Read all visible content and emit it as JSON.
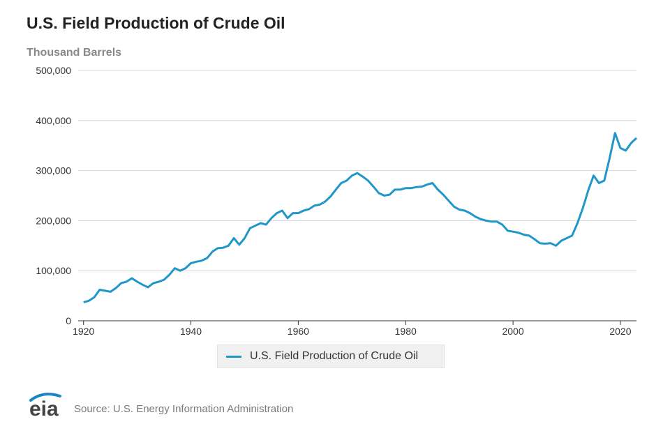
{
  "header": {
    "title": "U.S. Field Production of Crude Oil",
    "unit_label": "Thousand Barrels"
  },
  "footer": {
    "logo_text": "eia",
    "source": "Source: U.S. Energy Information Administration"
  },
  "colors": {
    "series": "#2196c9",
    "grid": "#d9d9d9",
    "axis": "#333333",
    "logo": "#1b84c4"
  },
  "chart_data": {
    "type": "line",
    "title": "U.S. Field Production of Crude Oil",
    "ylabel": "Thousand Barrels",
    "xlabel": "",
    "xlim": [
      1919,
      2023
    ],
    "ylim": [
      0,
      500000
    ],
    "x_ticks": [
      1920,
      1940,
      1960,
      1980,
      2000,
      2020
    ],
    "x_tick_labels": [
      "1920",
      "1940",
      "1960",
      "1980",
      "2000",
      "2020"
    ],
    "y_ticks": [
      0,
      100000,
      200000,
      300000,
      400000,
      500000
    ],
    "y_tick_labels": [
      "0",
      "100,000",
      "200,000",
      "300,000",
      "400,000",
      "500,000"
    ],
    "grid": true,
    "legend_position": "bottom-center",
    "series": [
      {
        "name": "U.S. Field Production of Crude Oil",
        "x": [
          1920,
          1921,
          1922,
          1923,
          1924,
          1925,
          1926,
          1927,
          1928,
          1929,
          1930,
          1931,
          1932,
          1933,
          1934,
          1935,
          1936,
          1937,
          1938,
          1939,
          1940,
          1941,
          1942,
          1943,
          1944,
          1945,
          1946,
          1947,
          1948,
          1949,
          1950,
          1951,
          1952,
          1953,
          1954,
          1955,
          1956,
          1957,
          1958,
          1959,
          1960,
          1961,
          1962,
          1963,
          1964,
          1965,
          1966,
          1967,
          1968,
          1969,
          1970,
          1971,
          1972,
          1973,
          1974,
          1975,
          1976,
          1977,
          1978,
          1979,
          1980,
          1981,
          1982,
          1983,
          1984,
          1985,
          1986,
          1987,
          1988,
          1989,
          1990,
          1991,
          1992,
          1993,
          1994,
          1995,
          1996,
          1997,
          1998,
          1999,
          2000,
          2001,
          2002,
          2003,
          2004,
          2005,
          2006,
          2007,
          2008,
          2009,
          2010,
          2011,
          2012,
          2013,
          2014,
          2015,
          2016,
          2017,
          2018,
          2019,
          2020,
          2021,
          2022,
          2023
        ],
        "values": [
          37000,
          40000,
          47000,
          62000,
          60000,
          58000,
          65000,
          75000,
          78000,
          85000,
          78000,
          72000,
          67000,
          75000,
          78000,
          82000,
          92000,
          105000,
          100000,
          105000,
          115000,
          118000,
          120000,
          125000,
          138000,
          145000,
          146000,
          150000,
          165000,
          152000,
          165000,
          185000,
          190000,
          195000,
          192000,
          205000,
          215000,
          220000,
          205000,
          215000,
          215000,
          220000,
          223000,
          230000,
          232000,
          238000,
          248000,
          262000,
          275000,
          280000,
          290000,
          295000,
          288000,
          280000,
          268000,
          255000,
          250000,
          252000,
          262000,
          262000,
          265000,
          265000,
          267000,
          268000,
          272000,
          275000,
          262000,
          252000,
          240000,
          228000,
          222000,
          220000,
          215000,
          208000,
          203000,
          200000,
          198000,
          198000,
          192000,
          180000,
          178000,
          176000,
          172000,
          170000,
          163000,
          155000,
          154000,
          155000,
          150000,
          160000,
          165000,
          170000,
          195000,
          225000,
          260000,
          290000,
          275000,
          280000,
          325000,
          375000,
          345000,
          340000,
          355000,
          365000
        ]
      }
    ]
  }
}
